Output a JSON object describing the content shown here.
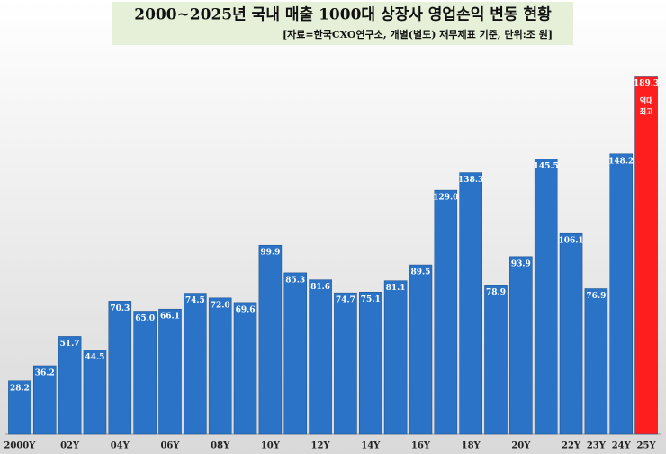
{
  "chart_data": {
    "type": "bar",
    "title": "2000~2025년 국내 매출 1000대 상장사 영업손익 변동 현황",
    "subtitle": "[자료=한국CXO연구소, 개별(별도) 재무제표 기준, 단위:조 원]",
    "categories": [
      "2000Y",
      null,
      "02Y",
      null,
      "04Y",
      null,
      "06Y",
      null,
      "08Y",
      null,
      "10Y",
      null,
      "12Y",
      null,
      "14Y",
      null,
      "16Y",
      null,
      "18Y",
      null,
      "20Y",
      null,
      "22Y",
      "23Y",
      "24Y",
      "25Y"
    ],
    "values": [
      28.2,
      36.2,
      51.7,
      44.5,
      70.3,
      65.0,
      66.1,
      74.5,
      72.0,
      69.6,
      99.9,
      85.3,
      81.6,
      74.7,
      75.1,
      81.1,
      89.5,
      129.0,
      138.3,
      78.9,
      93.9,
      145.5,
      106.1,
      76.9,
      148.2,
      189.3
    ],
    "value_labels": [
      "28.2",
      "36.2",
      "51.7",
      "44.5",
      "70.3",
      "65.0",
      "66.1",
      "74.5",
      "72.0",
      "69.6",
      "99.9",
      "85.3",
      "81.6",
      "74.7",
      "75.1",
      "81.1",
      "89.5",
      "129.0",
      "138.3",
      "78.9",
      "93.9",
      "145.5",
      "106.1",
      "76.9",
      "148.2",
      "189.3"
    ],
    "colors": [
      "#2a73c6",
      "#2a73c6",
      "#2a73c6",
      "#2a73c6",
      "#2a73c6",
      "#2a73c6",
      "#2a73c6",
      "#2a73c6",
      "#2a73c6",
      "#2a73c6",
      "#2a73c6",
      "#2a73c6",
      "#2a73c6",
      "#2a73c6",
      "#2a73c6",
      "#2a73c6",
      "#2a73c6",
      "#2a73c6",
      "#2a73c6",
      "#2a73c6",
      "#2a73c6",
      "#2a73c6",
      "#2a73c6",
      "#2a73c6",
      "#2a73c6",
      "#ff1e1e"
    ],
    "annotation": [
      "역대",
      "최고"
    ],
    "ylim": [
      0,
      200
    ]
  }
}
